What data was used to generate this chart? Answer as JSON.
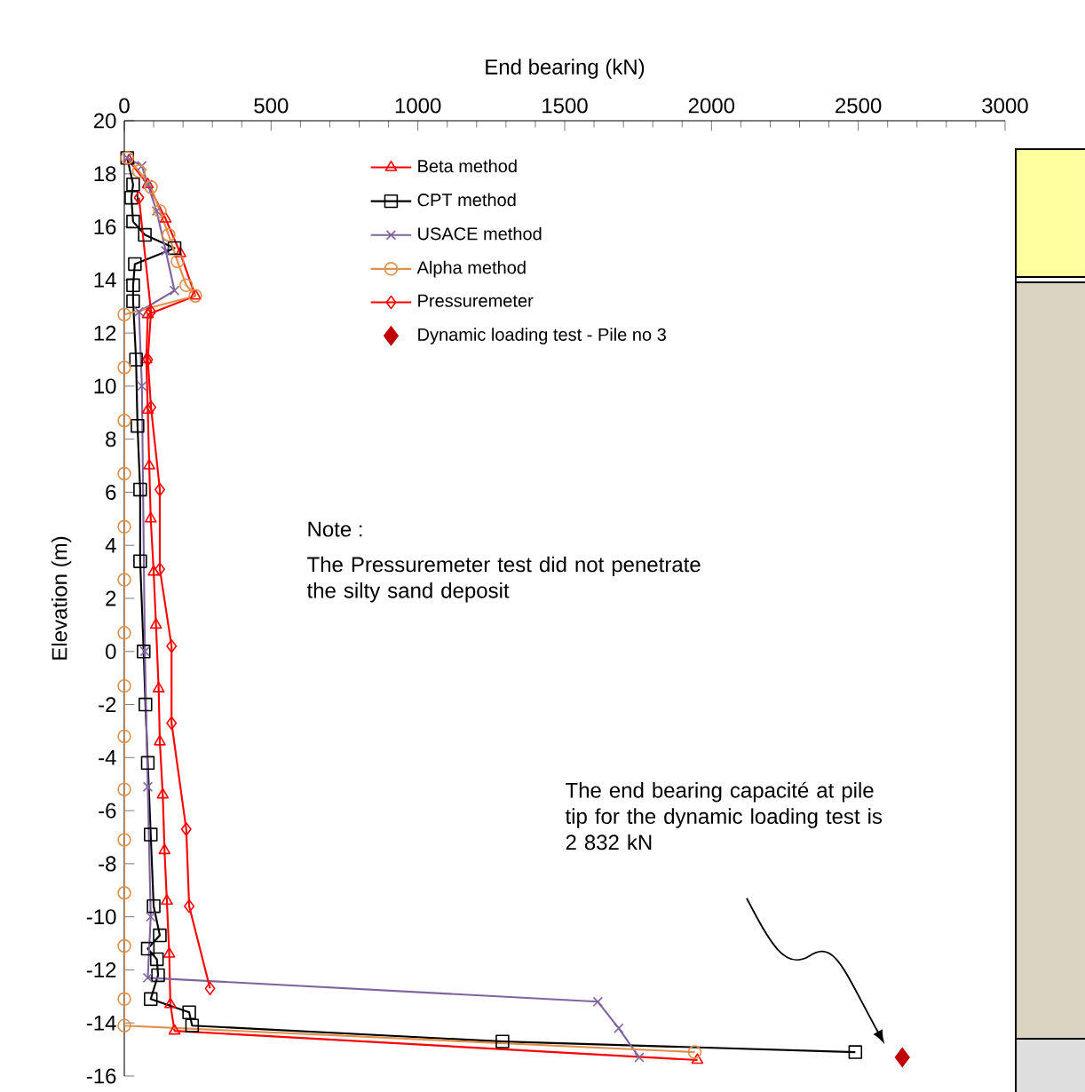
{
  "chart_data": {
    "type": "line",
    "xlabel": "End bearing (kN)",
    "ylabel": "Elevation  (m)",
    "xlim": [
      0,
      3000
    ],
    "xticks": [
      0,
      500,
      1000,
      1500,
      2000,
      2500,
      3000
    ],
    "ylim": [
      -16,
      20
    ],
    "yticks": [
      -16,
      -14,
      -12,
      -10,
      -8,
      -6,
      -4,
      -2,
      0,
      2,
      4,
      6,
      8,
      10,
      12,
      14,
      16,
      18,
      20
    ],
    "grid": false,
    "legend": "top",
    "series": [
      {
        "name": "Beta method",
        "color": "#ff0000",
        "marker": "triangle",
        "x": [
          16,
          80,
          141,
          191,
          242,
          80,
          75,
          80,
          85,
          90,
          100,
          108,
          117,
          121,
          131,
          137,
          145,
          153,
          157,
          171,
          1952
        ],
        "values": [
          18.5,
          17.6,
          16.3,
          15,
          13.4,
          12.7,
          11,
          9.1,
          7,
          5,
          3,
          1,
          -1.4,
          -3.4,
          -5.4,
          -7.5,
          -9.4,
          -11.4,
          -13.3,
          -14.3,
          -15.4
        ]
      },
      {
        "name": "CPT method",
        "color": "#000000",
        "marker": "square",
        "x": [
          10,
          30,
          24,
          30,
          70,
          171,
          36,
          30,
          30,
          40,
          45,
          54,
          54,
          66,
          72,
          80,
          90,
          100,
          121,
          80,
          111,
          115,
          90,
          221,
          231,
          1288,
          2490
        ],
        "values": [
          18.6,
          17.6,
          17.1,
          16.2,
          15.7,
          15.2,
          14.6,
          13.8,
          13.2,
          11,
          8.5,
          6.1,
          3.4,
          0,
          -2,
          -4.2,
          -6.9,
          -9.6,
          -10.7,
          -11.2,
          -11.6,
          -12.2,
          -13.1,
          -13.6,
          -14.1,
          -14.7,
          -15.1
        ]
      },
      {
        "name": "USACE method",
        "color": "#7f64a0",
        "marker": "cross",
        "x": [
          10,
          60,
          80,
          110,
          141,
          171,
          50,
          60,
          70,
          80,
          90,
          80,
          1613,
          1684,
          1754
        ],
        "values": [
          18.6,
          18.3,
          17.6,
          16.6,
          15.1,
          13.6,
          12.8,
          10,
          0,
          -5.1,
          -10,
          -12.3,
          -13.2,
          -14.2,
          -15.3
        ]
      },
      {
        "name": "Alpha method",
        "color": "#e0904a",
        "marker": "circle",
        "x": [
          10,
          50,
          91,
          121,
          151,
          181,
          211,
          242,
          0,
          0,
          0,
          0,
          0,
          0,
          0,
          0,
          0,
          0,
          0,
          0,
          0,
          0,
          0,
          1943
        ],
        "values": [
          18.6,
          18.1,
          17.5,
          16.6,
          15.7,
          14.7,
          13.8,
          13.4,
          12.7,
          10.7,
          8.7,
          6.7,
          4.7,
          2.7,
          0.7,
          -1.3,
          -3.2,
          -5.2,
          -7.1,
          -9.1,
          -11.1,
          -13.1,
          -14.1,
          -15.1
        ]
      },
      {
        "name": "Pressuremeter",
        "color": "#ff0000",
        "marker": "diamond",
        "x": [
          50,
          91,
          80,
          91,
          121,
          121,
          161,
          161,
          211,
          221,
          292
        ],
        "values": [
          17.1,
          12.8,
          11,
          9.2,
          6.1,
          3.1,
          0.2,
          -2.7,
          -6.7,
          -9.6,
          -12.7
        ]
      },
      {
        "name": "Dynamic loading test - Pile no 3",
        "type": "scatter",
        "color": "#c00000",
        "marker": "diamond",
        "x": [
          2650
        ],
        "values": [
          -15.3
        ]
      }
    ],
    "annotations": [
      "Note :",
      "The Pressuremeter test did not penetrate the silty sand deposit",
      "The end bearing capacité at pile tip for the dynamic loading test is 2 832 kN"
    ]
  }
}
